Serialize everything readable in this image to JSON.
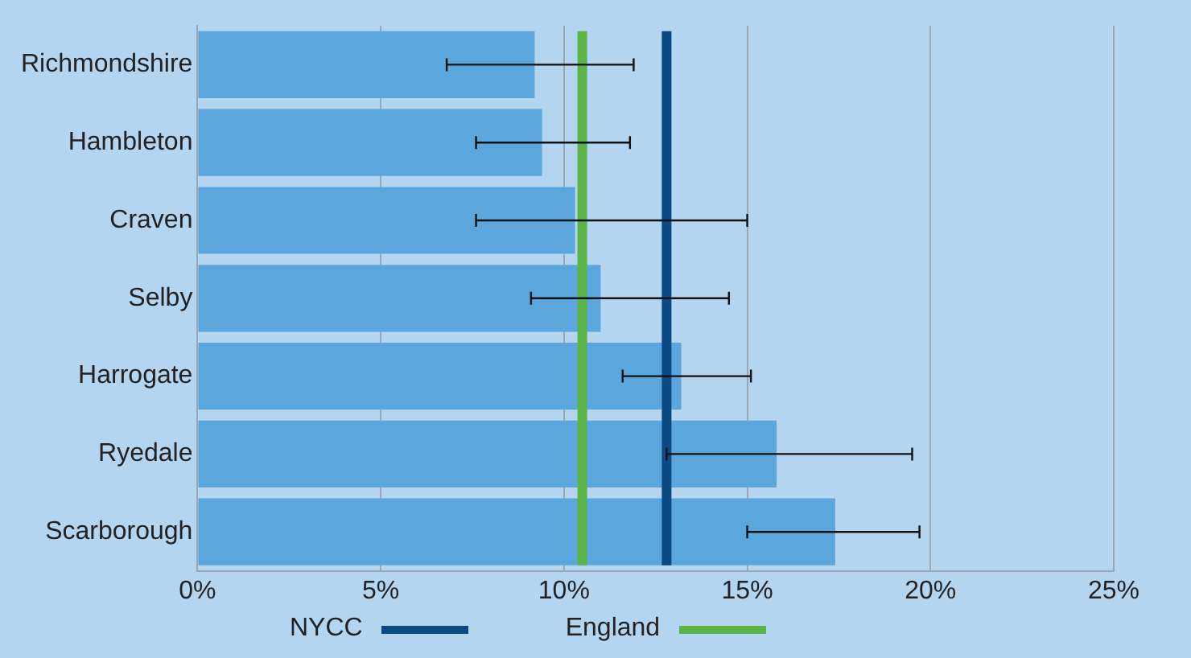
{
  "chart_data": {
    "type": "bar",
    "orientation": "horizontal",
    "categories": [
      "Richmondshire",
      "Hambleton",
      "Craven",
      "Selby",
      "Harrogate",
      "Ryedale",
      "Scarborough"
    ],
    "values": [
      9.2,
      9.4,
      10.3,
      11.0,
      13.2,
      15.8,
      17.4
    ],
    "errors": [
      [
        6.8,
        11.9
      ],
      [
        7.6,
        11.8
      ],
      [
        7.6,
        15.0
      ],
      [
        9.1,
        14.5
      ],
      [
        11.6,
        15.1
      ],
      [
        12.8,
        19.5
      ],
      [
        15.0,
        19.7
      ]
    ],
    "color": "#5ba7dd",
    "xlim": [
      0,
      25
    ],
    "xticks": [
      {
        "value": 0,
        "label": "0%"
      },
      {
        "value": 5,
        "label": "5%"
      },
      {
        "value": 10,
        "label": "10%"
      },
      {
        "value": 15,
        "label": "15%"
      },
      {
        "value": 20,
        "label": "20%"
      },
      {
        "value": 25,
        "label": "25%"
      }
    ],
    "grid": "x",
    "legend": "bottom",
    "ref_lines": [
      {
        "axis": "x",
        "value": 12.8,
        "label": "NYCC",
        "color": "#0b4a82"
      },
      {
        "axis": "x",
        "value": 10.5,
        "label": "England",
        "color": "#5cb347"
      }
    ]
  }
}
